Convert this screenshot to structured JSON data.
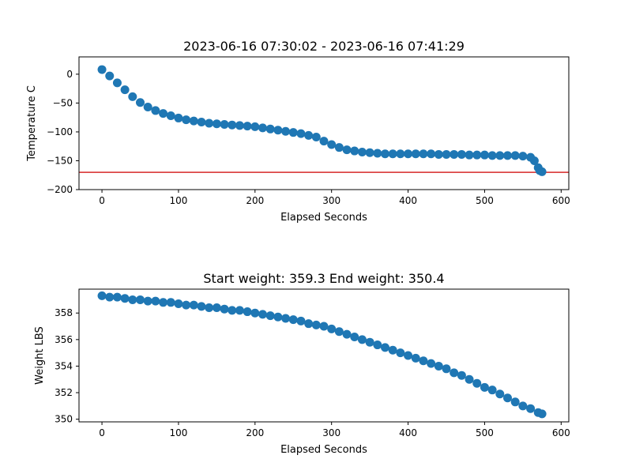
{
  "chart_data": [
    {
      "type": "scatter",
      "title": "2023-06-16 07:30:02 - 2023-06-16 07:41:29",
      "xlabel": "Elapsed Seconds",
      "ylabel": "Temperature C",
      "xlim": [
        -30,
        610
      ],
      "ylim": [
        -200,
        30
      ],
      "xticks": [
        0,
        100,
        200,
        300,
        400,
        500,
        600
      ],
      "yticks": [
        -200,
        -150,
        -100,
        -50,
        0
      ],
      "grid": false,
      "marker_color": "#1f77b4",
      "reference_line": {
        "y": -170,
        "color": "#d62728"
      },
      "series": [
        {
          "x": [
            0,
            10,
            20,
            30,
            40,
            50,
            60,
            70,
            80,
            90,
            100,
            110,
            120,
            130,
            140,
            150,
            160,
            170,
            180,
            190,
            200,
            210,
            220,
            230,
            240,
            250,
            260,
            270,
            280,
            290,
            300,
            310,
            320,
            330,
            340,
            350,
            360,
            370,
            380,
            390,
            400,
            410,
            420,
            430,
            440,
            450,
            460,
            470,
            480,
            490,
            500,
            510,
            520,
            530,
            540,
            550,
            560,
            565,
            570,
            572,
            575
          ],
          "y": [
            8,
            -3,
            -15,
            -27,
            -39,
            -49,
            -57,
            -63,
            -68,
            -72,
            -76,
            -79,
            -81,
            -83,
            -85,
            -86,
            -87,
            -88,
            -89,
            -90,
            -91,
            -93,
            -95,
            -97,
            -99,
            -101,
            -103,
            -106,
            -109,
            -116,
            -122,
            -127,
            -131,
            -133,
            -135,
            -136,
            -137,
            -138,
            -138,
            -138,
            -138,
            -138,
            -138,
            -138,
            -139,
            -139,
            -139,
            -139,
            -140,
            -140,
            -140,
            -141,
            -141,
            -141,
            -141,
            -142,
            -144,
            -150,
            -162,
            -167,
            -169
          ]
        }
      ]
    },
    {
      "type": "scatter",
      "title": "Start weight: 359.3 End weight: 350.4",
      "xlabel": "Elapsed Seconds",
      "ylabel": "Weight LBS",
      "xlim": [
        -30,
        610
      ],
      "ylim": [
        349.8,
        359.8
      ],
      "xticks": [
        0,
        100,
        200,
        300,
        400,
        500,
        600
      ],
      "yticks": [
        350,
        352,
        354,
        356,
        358
      ],
      "grid": false,
      "marker_color": "#1f77b4",
      "series": [
        {
          "x": [
            0,
            10,
            20,
            30,
            40,
            50,
            60,
            70,
            80,
            90,
            100,
            110,
            120,
            130,
            140,
            150,
            160,
            170,
            180,
            190,
            200,
            210,
            220,
            230,
            240,
            250,
            260,
            270,
            280,
            290,
            300,
            310,
            320,
            330,
            340,
            350,
            360,
            370,
            380,
            390,
            400,
            410,
            420,
            430,
            440,
            450,
            460,
            470,
            480,
            490,
            500,
            510,
            520,
            530,
            540,
            550,
            560,
            570,
            575
          ],
          "y": [
            359.3,
            359.2,
            359.2,
            359.1,
            359.0,
            359.0,
            358.9,
            358.9,
            358.8,
            358.8,
            358.7,
            358.6,
            358.6,
            358.5,
            358.4,
            358.4,
            358.3,
            358.2,
            358.2,
            358.1,
            358.0,
            357.9,
            357.8,
            357.7,
            357.6,
            357.5,
            357.4,
            357.2,
            357.1,
            357.0,
            356.8,
            356.6,
            356.4,
            356.2,
            356.0,
            355.8,
            355.6,
            355.4,
            355.2,
            355.0,
            354.8,
            354.6,
            354.4,
            354.2,
            354.0,
            353.8,
            353.5,
            353.3,
            353.0,
            352.7,
            352.4,
            352.2,
            351.9,
            351.6,
            351.3,
            351.0,
            350.8,
            350.5,
            350.4
          ]
        }
      ]
    }
  ]
}
